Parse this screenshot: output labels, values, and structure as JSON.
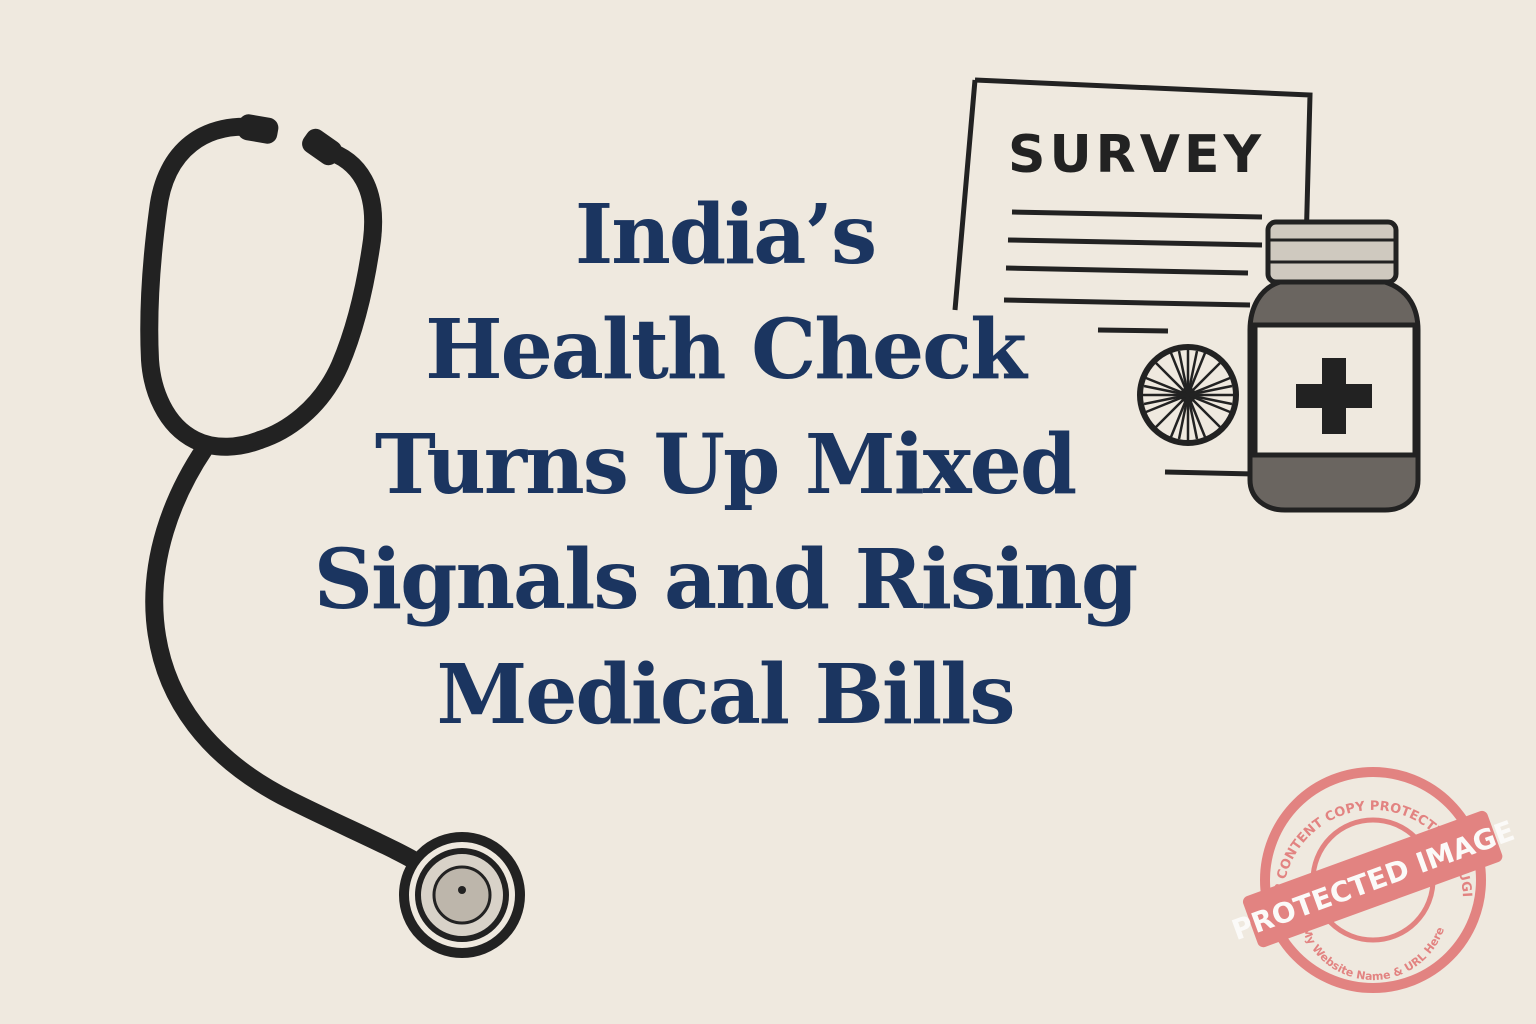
{
  "headline": {
    "lines": [
      "India’s",
      "Health Check",
      "Turns Up Mixed",
      "Signals and Rising",
      "Medical Bills"
    ]
  },
  "document": {
    "label": "SURVEY"
  },
  "stamp": {
    "top_text": "WP CONTENT COPY PROTECTION PLUGIN",
    "band_text": "PROTECTED IMAGE",
    "bottom_text": "My Website Name & URL Here"
  },
  "colors": {
    "background": "#efe9df",
    "headline": "#1b3560",
    "ink": "#222222",
    "stamp": "#e06a6a"
  },
  "icons": [
    "stethoscope-icon",
    "survey-document-icon",
    "ashoka-chakra-icon",
    "medicine-bottle-icon",
    "cross-icon",
    "protected-stamp-icon"
  ]
}
